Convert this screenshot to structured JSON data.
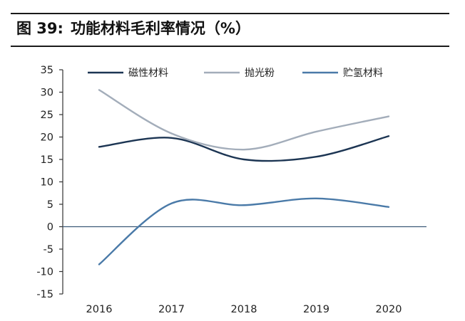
{
  "figure": {
    "label": "图 39:",
    "title": "功能材料毛利率情况（%）"
  },
  "chart_data": {
    "type": "line",
    "categories": [
      "2016",
      "2017",
      "2018",
      "2019",
      "2020"
    ],
    "series": [
      {
        "name": "磁性材料",
        "values": [
          17.8,
          19.8,
          15.0,
          15.6,
          20.2
        ],
        "color": "#1c3553"
      },
      {
        "name": "抛光粉",
        "values": [
          30.5,
          20.8,
          17.2,
          21.2,
          24.6
        ],
        "color": "#a3adba"
      },
      {
        "name": "贮氢材料",
        "values": [
          -8.4,
          5.2,
          4.8,
          6.3,
          4.4
        ],
        "color": "#4a7aa8"
      }
    ],
    "yticks": [
      "35",
      "30",
      "25",
      "20",
      "15",
      "10",
      "5",
      "0",
      "-5",
      "-10",
      "-15"
    ],
    "ylim": [
      -15,
      35
    ],
    "xlabel": "",
    "ylabel": "",
    "grid": false,
    "legend_position": "top",
    "smooth": true
  }
}
